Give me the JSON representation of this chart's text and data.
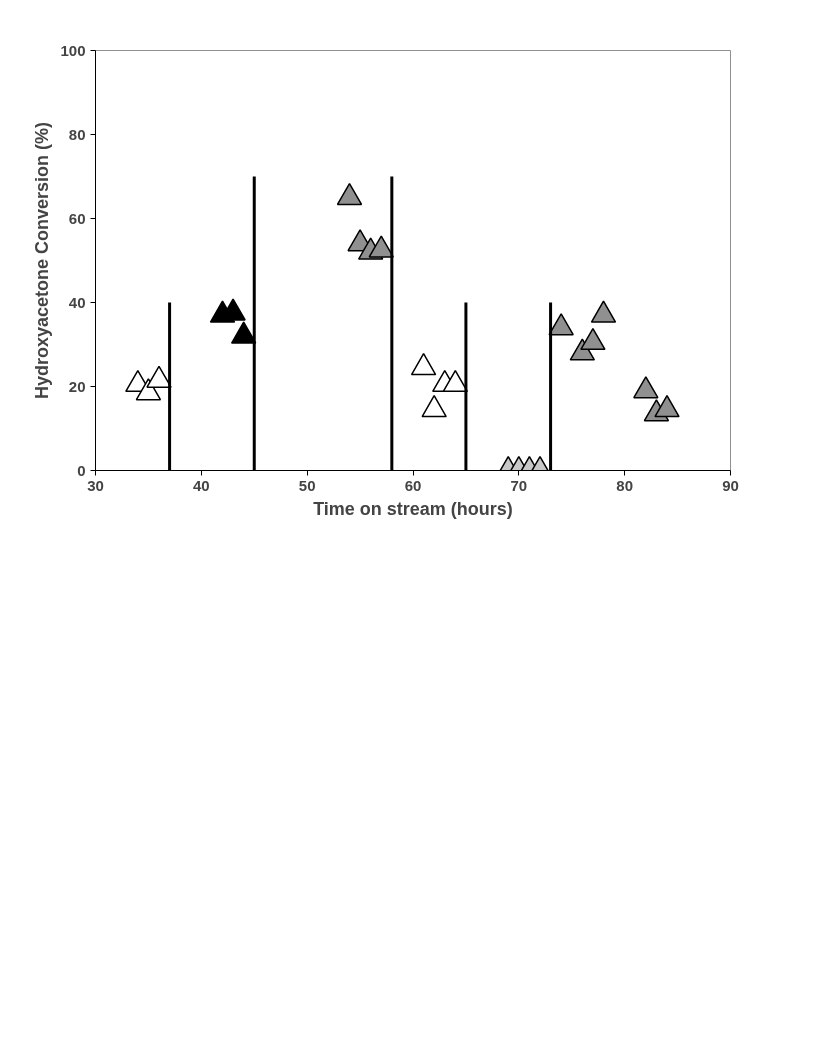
{
  "chart_data": {
    "type": "scatter",
    "xlabel": "Time on stream (hours)",
    "ylabel": "Hydroxyacetone Conversion (%)",
    "xlim": [
      30,
      90
    ],
    "xticks": [
      30,
      40,
      50,
      60,
      70,
      80,
      90
    ],
    "ylim": [
      0,
      100
    ],
    "yticks": [
      0,
      20,
      40,
      60,
      80,
      100
    ],
    "grid": false,
    "marker": "triangle",
    "series": [
      {
        "color": "#ffffff",
        "x": [
          34,
          35,
          36
        ],
        "values": [
          20.5,
          18.5,
          21.5
        ]
      },
      {
        "color": "#000000",
        "x": [
          42,
          43,
          44
        ],
        "values": [
          37,
          37.5,
          32
        ]
      },
      {
        "color": "#909090",
        "x": [
          54,
          55,
          56,
          57
        ],
        "values": [
          65,
          54,
          52,
          52.5
        ]
      },
      {
        "color": "#ffffff",
        "x": [
          61,
          62,
          63,
          64
        ],
        "values": [
          24.5,
          14.5,
          20.5,
          20.5
        ]
      },
      {
        "color": "#c8c8c8",
        "x": [
          69,
          70,
          71,
          72
        ],
        "values": [
          0,
          0,
          0,
          0
        ]
      },
      {
        "color": "#909090",
        "x": [
          74,
          76,
          77,
          78,
          82,
          83,
          84
        ],
        "values": [
          34,
          28,
          30.5,
          37,
          19,
          13.5,
          14.5
        ]
      },
      {
        "type": "line",
        "color": "#000000",
        "marker": "none",
        "x": [
          37,
          37
        ],
        "values": [
          0,
          40
        ]
      },
      {
        "type": "line",
        "color": "#000000",
        "marker": "none",
        "x": [
          45,
          45
        ],
        "values": [
          0,
          70
        ]
      },
      {
        "type": "line",
        "color": "#000000",
        "marker": "none",
        "x": [
          58,
          58
        ],
        "values": [
          0,
          70
        ]
      },
      {
        "type": "line",
        "color": "#000000",
        "marker": "none",
        "x": [
          65,
          65
        ],
        "values": [
          0,
          40
        ]
      },
      {
        "type": "line",
        "color": "#000000",
        "marker": "none",
        "x": [
          73,
          73
        ],
        "values": [
          0,
          40
        ]
      }
    ]
  }
}
